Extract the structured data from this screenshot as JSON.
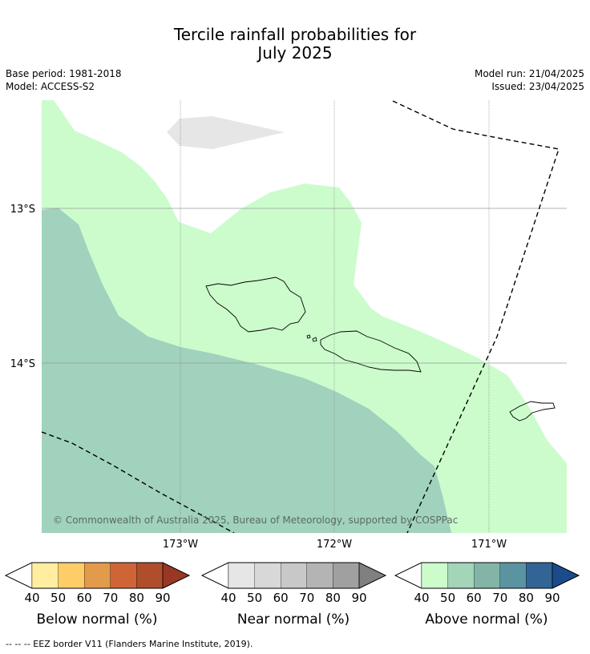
{
  "title": {
    "line1": "Tercile rainfall probabilities for",
    "line2": "July 2025"
  },
  "meta": {
    "base_period": "Base period: 1981-2018",
    "model": "Model: ACCESS-S2",
    "model_run": "Model run: 21/04/2025",
    "issued": "Issued: 23/04/2025"
  },
  "map": {
    "lat_labels": [
      "13°S",
      "14°S"
    ],
    "lon_labels": [
      "173°W",
      "172°W",
      "171°W"
    ],
    "copyright": "© Commonwealth of Australia 2025, Bureau of Meteorology, supported by COSPPac",
    "colors": {
      "above_40": "#ccfccc",
      "above_50": "#a0d2bd",
      "near_40": "#e6e6e6"
    }
  },
  "colorbars": [
    {
      "title": "Below normal (%)",
      "ticks": [
        "40",
        "50",
        "60",
        "70",
        "80",
        "90"
      ],
      "colors": [
        "#ffffff",
        "#ffeea0",
        "#ffcd67",
        "#e29a4b",
        "#cf6537",
        "#b04e2c",
        "#983723"
      ]
    },
    {
      "title": "Near normal (%)",
      "ticks": [
        "40",
        "50",
        "60",
        "70",
        "80",
        "90"
      ],
      "colors": [
        "#ffffff",
        "#e6e6e6",
        "#d8d8d8",
        "#c8c8c8",
        "#b4b4b4",
        "#a0a0a0",
        "#808080"
      ]
    },
    {
      "title": "Above normal (%)",
      "ticks": [
        "40",
        "50",
        "60",
        "70",
        "80",
        "90"
      ],
      "colors": [
        "#ffffff",
        "#ccfccc",
        "#a3d5b9",
        "#82b5a8",
        "#5b94a1",
        "#326596",
        "#1a4c8a"
      ]
    }
  ],
  "footer": "--  --  -- EEZ border V11 (Flanders Marine Institute, 2019)."
}
